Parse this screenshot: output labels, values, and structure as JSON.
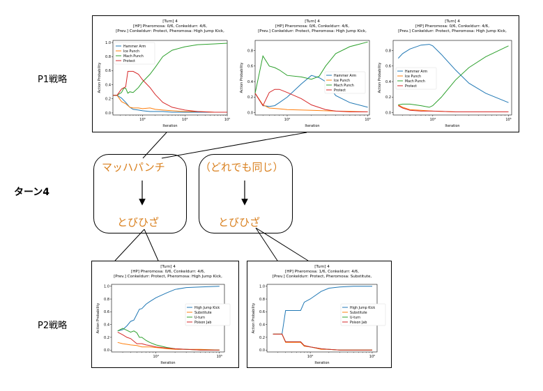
{
  "labels": {
    "p1": "P1戦略",
    "p2": "P2戦略",
    "turn": "ターン4"
  },
  "tree": {
    "p1_move_a": "マッハパンチ",
    "p1_move_b": "（どれでも同じ）",
    "p2_move_a": "とびひざ",
    "p2_move_b": "とびひざ"
  },
  "chart_data": [
    {
      "id": "p1a",
      "type": "line",
      "title": [
        "[Turn] 4",
        "[HP] Pheromosa: 0/6, Conkeldurr: 4/6,",
        "[Prev.] Conkeldurr: Protect, Pheromosa: High Jump Kick,"
      ],
      "xlabel": "Iteration",
      "ylabel": "Action Probability",
      "xscale": "log",
      "xlim": [
        200,
        100000
      ],
      "ylim": [
        -0.03,
        1.03
      ],
      "xticks": [
        {
          "v": 1000,
          "t": "10³"
        },
        {
          "v": 10000,
          "t": "10⁴"
        },
        {
          "v": 100000,
          "t": "10⁵"
        }
      ],
      "yticks": [
        0.0,
        0.2,
        0.4,
        0.6,
        0.8,
        1.0
      ],
      "legend": "top-left",
      "series": [
        {
          "name": "Hammer Arm",
          "color": "#1f77b4",
          "x": [
            200,
            250,
            320,
            400,
            500,
            600,
            800,
            1000,
            1500,
            2000,
            3000,
            5000,
            10000,
            20000,
            50000,
            100000
          ],
          "y": [
            0.25,
            0.25,
            0.21,
            0.15,
            0.08,
            0.05,
            0.04,
            0.03,
            0.02,
            0.02,
            0.02,
            0.01,
            0.01,
            0.01,
            0.01,
            0.01
          ]
        },
        {
          "name": "Ice Punch",
          "color": "#ff7f0e",
          "x": [
            200,
            250,
            320,
            400,
            500,
            600,
            800,
            1000,
            1500,
            2000,
            3000,
            5000,
            10000,
            20000,
            50000,
            100000
          ],
          "y": [
            0.25,
            0.25,
            0.16,
            0.13,
            0.08,
            0.07,
            0.07,
            0.06,
            0.07,
            0.05,
            0.04,
            0.03,
            0.02,
            0.02,
            0.01,
            0.01
          ]
        },
        {
          "name": "Mach Punch",
          "color": "#2ca02c",
          "x": [
            200,
            250,
            320,
            360,
            400,
            450,
            500,
            600,
            800,
            1000,
            1500,
            2000,
            3000,
            5000,
            10000,
            20000,
            50000,
            100000
          ],
          "y": [
            0.25,
            0.25,
            0.29,
            0.35,
            0.35,
            0.28,
            0.3,
            0.29,
            0.36,
            0.44,
            0.55,
            0.65,
            0.8,
            0.89,
            0.94,
            0.97,
            0.98,
            0.99
          ]
        },
        {
          "name": "Protect",
          "color": "#d62728",
          "x": [
            200,
            250,
            320,
            400,
            450,
            500,
            600,
            800,
            1000,
            1500,
            2000,
            3000,
            5000,
            10000,
            20000,
            50000,
            100000
          ],
          "y": [
            0.25,
            0.25,
            0.34,
            0.37,
            0.59,
            0.59,
            0.59,
            0.55,
            0.47,
            0.36,
            0.26,
            0.15,
            0.08,
            0.04,
            0.02,
            0.01,
            0.01
          ]
        }
      ]
    },
    {
      "id": "p1b",
      "type": "line",
      "title": [
        "[Turn] 4",
        "[HP] Pheromosa: 0/6, Conkeldurr: 4/6,",
        "[Prev.] Conkeldurr: Protect, Pheromosa: High Jump Kick,"
      ],
      "xlabel": "Iteration",
      "ylabel": "Action Probability",
      "xscale": "log",
      "xlim": [
        4000,
        105000
      ],
      "ylim": [
        -0.03,
        0.93
      ],
      "xticks": [
        {
          "v": 10000,
          "t": "10⁴"
        },
        {
          "v": 100000,
          "t": "10⁵"
        }
      ],
      "yticks": [
        0.0,
        0.2,
        0.4,
        0.6,
        0.8
      ],
      "legend": "right",
      "series": [
        {
          "name": "Hammer Arm",
          "color": "#1f77b4",
          "x": [
            4000,
            5000,
            6000,
            7000,
            8000,
            10000,
            15000,
            20000,
            25000,
            30000,
            40000,
            60000,
            100000
          ],
          "y": [
            0.25,
            0.09,
            0.08,
            0.09,
            0.13,
            0.2,
            0.37,
            0.48,
            0.45,
            0.4,
            0.22,
            0.13,
            0.07
          ]
        },
        {
          "name": "Ice Punch",
          "color": "#ff7f0e",
          "x": [
            4000,
            5000,
            6000,
            8000,
            10000,
            20000,
            40000,
            100000
          ],
          "y": [
            0.25,
            0.1,
            0.06,
            0.05,
            0.04,
            0.03,
            0.02,
            0.01
          ]
        },
        {
          "name": "Mach Punch",
          "color": "#2ca02c",
          "x": [
            4000,
            5000,
            6000,
            7000,
            8000,
            10000,
            15000,
            20000,
            25000,
            30000,
            40000,
            60000,
            100000
          ],
          "y": [
            0.25,
            0.73,
            0.6,
            0.58,
            0.55,
            0.48,
            0.46,
            0.43,
            0.47,
            0.6,
            0.76,
            0.85,
            0.91
          ]
        },
        {
          "name": "Protect",
          "color": "#d62728",
          "x": [
            4000,
            5000,
            6000,
            7000,
            8000,
            10000,
            15000,
            20000,
            30000,
            40000,
            60000,
            100000
          ],
          "y": [
            0.25,
            0.09,
            0.26,
            0.3,
            0.3,
            0.26,
            0.18,
            0.1,
            0.04,
            0.02,
            0.01,
            0.01
          ]
        }
      ]
    },
    {
      "id": "p1c",
      "type": "line",
      "title": [
        "[Turn] 4",
        "[HP] Pheromosa: 0/6, Conkeldurr: 4/6,",
        "[Prev.] Conkeldurr: Protect, Pheromosa: High Jump Kick,"
      ],
      "xlabel": "Iteration",
      "ylabel": "Action Probability",
      "xscale": "log",
      "xlim": [
        3000,
        110000
      ],
      "ylim": [
        -0.03,
        0.93
      ],
      "xticks": [
        {
          "v": 10000,
          "t": "10⁴"
        },
        {
          "v": 100000,
          "t": "10⁵"
        }
      ],
      "yticks": [
        0.0,
        0.2,
        0.4,
        0.6,
        0.8
      ],
      "legend": "mid-left",
      "series": [
        {
          "name": "Hammer Arm",
          "color": "#1f77b4",
          "x": [
            3500,
            4000,
            5000,
            7000,
            9000,
            10000,
            13000,
            20000,
            30000,
            50000,
            100000
          ],
          "y": [
            0.7,
            0.76,
            0.82,
            0.87,
            0.88,
            0.86,
            0.75,
            0.55,
            0.38,
            0.25,
            0.13
          ]
        },
        {
          "name": "Ice Punch",
          "color": "#ff7f0e",
          "x": [
            3500,
            4000,
            5000,
            7000,
            10000,
            20000,
            50000,
            100000
          ],
          "y": [
            0.1,
            0.07,
            0.04,
            0.03,
            0.02,
            0.01,
            0.01,
            0.01
          ]
        },
        {
          "name": "Mach Punch",
          "color": "#2ca02c",
          "x": [
            3500,
            4000,
            5000,
            7000,
            9000,
            10000,
            13000,
            20000,
            30000,
            50000,
            100000
          ],
          "y": [
            0.1,
            0.11,
            0.11,
            0.09,
            0.07,
            0.09,
            0.2,
            0.42,
            0.58,
            0.72,
            0.86
          ]
        },
        {
          "name": "Protect",
          "color": "#d62728",
          "x": [
            3500,
            4000,
            5000,
            7000,
            10000,
            20000,
            50000,
            100000
          ],
          "y": [
            0.09,
            0.06,
            0.03,
            0.02,
            0.02,
            0.01,
            0.01,
            0.01
          ]
        }
      ]
    },
    {
      "id": "p2a",
      "type": "line",
      "title": [
        "[Turn] 4",
        "[HP] Pheromosa: 0/6, Conkeldurr: 4/6,",
        "[Prev.] Conkeldurr: Protect, Pheromosa: High Jump Kick,"
      ],
      "xlabel": "Iteration",
      "ylabel": "Action Probability",
      "xscale": "log",
      "xlim": [
        2000,
        120000
      ],
      "ylim": [
        -0.03,
        1.03
      ],
      "xticks": [
        {
          "v": 10000,
          "t": "10⁴"
        },
        {
          "v": 100000,
          "t": "10⁵"
        }
      ],
      "yticks": [
        0.0,
        0.2,
        0.4,
        0.6,
        0.8,
        1.0
      ],
      "legend": "right",
      "series": [
        {
          "name": "High Jump Kick",
          "color": "#1f77b4",
          "x": [
            2500,
            3000,
            3500,
            4000,
            4500,
            5000,
            5500,
            6000,
            7000,
            8000,
            10000,
            15000,
            20000,
            30000,
            50000,
            100000
          ],
          "y": [
            0.3,
            0.32,
            0.38,
            0.45,
            0.47,
            0.56,
            0.64,
            0.65,
            0.72,
            0.76,
            0.82,
            0.9,
            0.95,
            0.98,
            0.99,
            1.0
          ]
        },
        {
          "name": "Substitute",
          "color": "#ff7f0e",
          "x": [
            2500,
            3000,
            3500,
            4000,
            5000,
            6000,
            8000,
            10000,
            15000,
            20000,
            30000,
            50000,
            100000
          ],
          "y": [
            0.12,
            0.1,
            0.09,
            0.08,
            0.07,
            0.05,
            0.05,
            0.04,
            0.02,
            0.01,
            0.01,
            0.01,
            0.0
          ]
        },
        {
          "name": "U-turn",
          "color": "#2ca02c",
          "x": [
            2500,
            3000,
            3500,
            4000,
            4500,
            5000,
            5500,
            6000,
            7000,
            8000,
            10000,
            15000,
            20000,
            30000,
            50000,
            100000
          ],
          "y": [
            0.3,
            0.34,
            0.31,
            0.28,
            0.3,
            0.27,
            0.2,
            0.2,
            0.15,
            0.12,
            0.08,
            0.04,
            0.02,
            0.01,
            0.0,
            0.0
          ]
        },
        {
          "name": "Poison Jab",
          "color": "#d62728",
          "x": [
            2500,
            3000,
            3500,
            4000,
            5000,
            6000,
            7000,
            8000,
            10000,
            15000,
            20000,
            30000,
            50000,
            100000
          ],
          "y": [
            0.28,
            0.24,
            0.2,
            0.18,
            0.1,
            0.1,
            0.08,
            0.07,
            0.05,
            0.03,
            0.02,
            0.01,
            0.0,
            0.0
          ]
        }
      ]
    },
    {
      "id": "p2b",
      "type": "line",
      "title": [
        "[Turn] 4",
        "[HP] Pheromosa: 1/6, Conkeldurr: 4/6,",
        "[Prev.] Conkeldurr: Protect, Pheromosa: Substitute,"
      ],
      "xlabel": "Iteration",
      "ylabel": "Action Probability",
      "xscale": "log",
      "xlim": [
        2000,
        120000
      ],
      "ylim": [
        -0.03,
        1.03
      ],
      "xticks": [
        {
          "v": 10000,
          "t": "10⁴"
        },
        {
          "v": 100000,
          "t": "10⁵"
        }
      ],
      "yticks": [
        0.0,
        0.2,
        0.4,
        0.6,
        0.8,
        1.0
      ],
      "legend": "right",
      "series": [
        {
          "name": "High Jump Kick",
          "color": "#1f77b4",
          "x": [
            2500,
            3500,
            4000,
            5000,
            7000,
            8000,
            10000,
            15000,
            20000,
            30000,
            50000,
            100000
          ],
          "y": [
            0.25,
            0.25,
            0.62,
            0.62,
            0.62,
            0.75,
            0.8,
            0.92,
            0.97,
            0.99,
            1.0,
            1.0
          ]
        },
        {
          "name": "Substitute",
          "color": "#ff7f0e",
          "x": [
            2500,
            3500,
            4000,
            5000,
            7000,
            8000,
            10000,
            15000,
            20000,
            30000,
            50000,
            100000
          ],
          "y": [
            0.25,
            0.25,
            0.12,
            0.12,
            0.12,
            0.06,
            0.05,
            0.01,
            0.01,
            0.0,
            0.0,
            0.0
          ]
        },
        {
          "name": "U-turn",
          "color": "#2ca02c",
          "x": [
            2500,
            3500,
            4000,
            5000,
            7000,
            8000,
            10000,
            15000,
            20000,
            30000,
            50000,
            100000
          ],
          "y": [
            0.25,
            0.25,
            0.13,
            0.13,
            0.13,
            0.07,
            0.05,
            0.02,
            0.01,
            0.0,
            0.0,
            0.0
          ]
        },
        {
          "name": "Poison Jab",
          "color": "#d62728",
          "x": [
            2500,
            3500,
            4000,
            5000,
            7000,
            8000,
            10000,
            15000,
            20000,
            30000,
            50000,
            100000
          ],
          "y": [
            0.25,
            0.25,
            0.13,
            0.13,
            0.13,
            0.07,
            0.05,
            0.02,
            0.01,
            0.0,
            0.0,
            0.0
          ]
        }
      ]
    }
  ]
}
